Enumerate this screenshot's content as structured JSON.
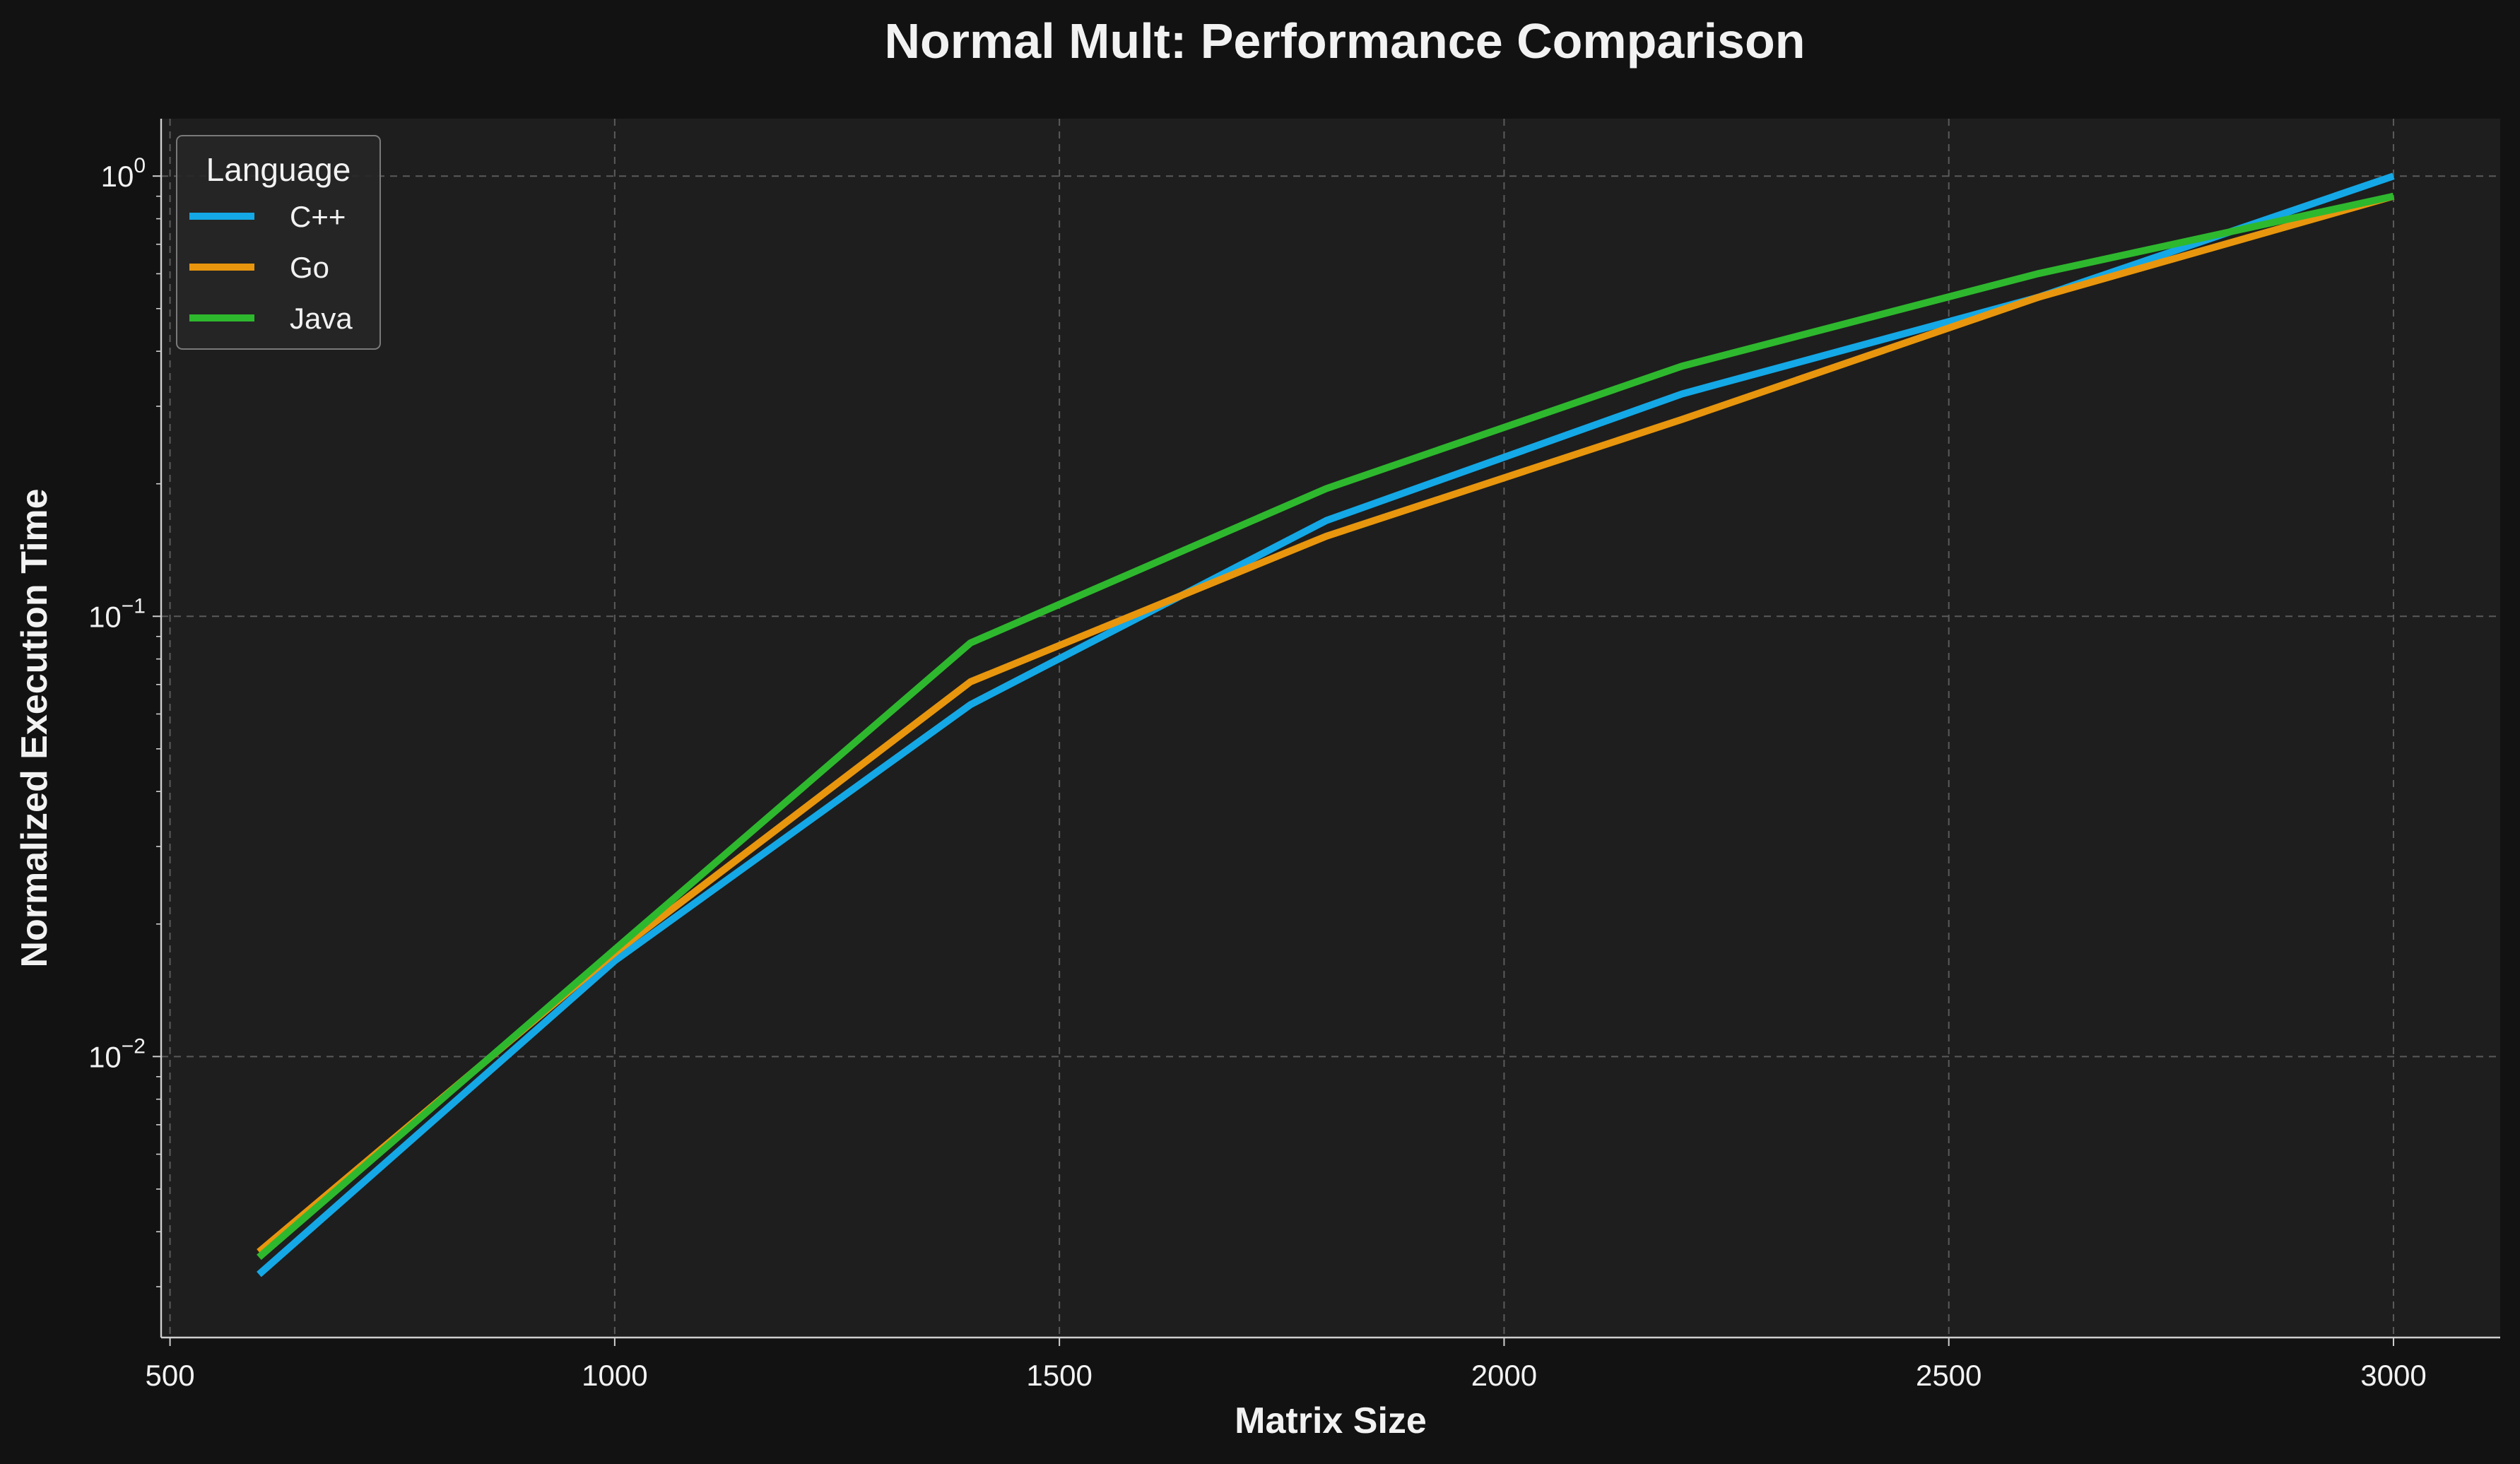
{
  "chart_data": {
    "type": "line",
    "title": "Normal Mult: Performance Comparison",
    "xlabel": "Matrix Size",
    "ylabel": "Normalized Execution Time",
    "xlim": [
      490,
      3120
    ],
    "ylim": [
      0.0023,
      1.35
    ],
    "yscale": "log",
    "grid": true,
    "x_ticks": [
      500,
      1000,
      1500,
      2000,
      2500,
      3000
    ],
    "y_ticks": [
      {
        "value": 1,
        "base": "10",
        "exp": "0"
      },
      {
        "value": 0.1,
        "base": "10",
        "exp": "−1"
      },
      {
        "value": 0.01,
        "base": "10",
        "exp": "−2"
      }
    ],
    "y_minor_ticks": [
      0.003,
      0.004,
      0.005,
      0.006,
      0.007,
      0.008,
      0.009,
      0.02,
      0.03,
      0.04,
      0.05,
      0.06,
      0.07,
      0.08,
      0.09,
      0.2,
      0.3,
      0.4,
      0.5,
      0.6,
      0.7,
      0.8,
      0.9
    ],
    "legend": {
      "title": "Language",
      "position": "top-left"
    },
    "x": [
      600,
      1000,
      1400,
      1800,
      2200,
      2600,
      3000
    ],
    "series": [
      {
        "name": "C++",
        "color": "#14a8e6",
        "values": [
          0.0032,
          0.0165,
          0.063,
          0.165,
          0.32,
          0.53,
          1.0
        ]
      },
      {
        "name": "Go",
        "color": "#e8960e",
        "values": [
          0.0036,
          0.0172,
          0.071,
          0.152,
          0.28,
          0.53,
          0.9
        ]
      },
      {
        "name": "Java",
        "color": "#2eb82e",
        "values": [
          0.0035,
          0.0175,
          0.087,
          0.195,
          0.37,
          0.6,
          0.9
        ]
      }
    ]
  }
}
